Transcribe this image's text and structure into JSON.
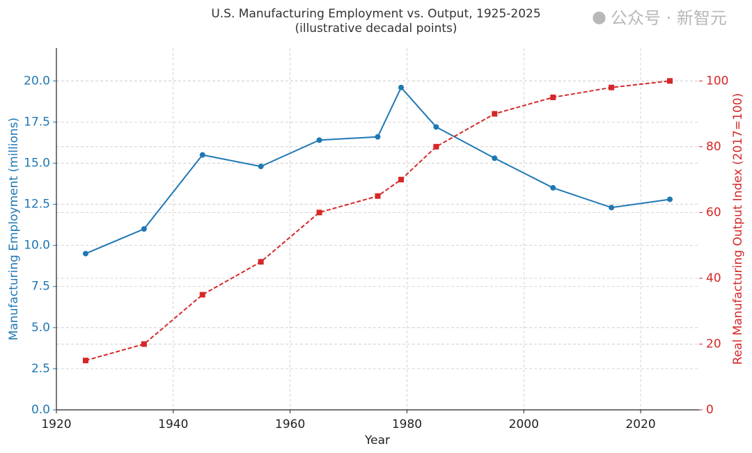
{
  "chart_data": {
    "type": "line",
    "title": "U.S. Manufacturing Employment vs. Output, 1925-2025",
    "subtitle": "(illustrative decadal points)",
    "xlabel": "Year",
    "ylabel": "Manufacturing Employment (millions)",
    "ylabel_right": "Real Manufacturing Output Index (2017=100)",
    "xlim": [
      1920,
      2030
    ],
    "ylim": [
      0,
      22
    ],
    "ylim_right": [
      0,
      110
    ],
    "xticks": [
      1920,
      1940,
      1960,
      1980,
      2000,
      2020
    ],
    "yticks": [
      "0.0",
      "2.5",
      "5.0",
      "7.5",
      "10.0",
      "12.5",
      "15.0",
      "17.5",
      "20.0"
    ],
    "yticks_right": [
      "0",
      "20",
      "40",
      "60",
      "80",
      "100"
    ],
    "grid": true,
    "x": [
      1925,
      1935,
      1945,
      1955,
      1965,
      1975,
      1979,
      1985,
      1995,
      2005,
      2015,
      2025
    ],
    "series": [
      {
        "axis": "left",
        "color": "#1f77b4",
        "marker": "circle",
        "linestyle": "solid",
        "values": [
          9.5,
          11.0,
          15.5,
          14.8,
          16.4,
          16.6,
          19.6,
          17.2,
          15.3,
          13.5,
          12.3,
          12.8
        ]
      },
      {
        "axis": "right",
        "color": "#d62728",
        "marker": "square",
        "linestyle": "dashed",
        "values": [
          15,
          20,
          35,
          45,
          60,
          65,
          70,
          80,
          90,
          95,
          98,
          100
        ]
      }
    ]
  },
  "watermark": "公众号 · 新智元"
}
